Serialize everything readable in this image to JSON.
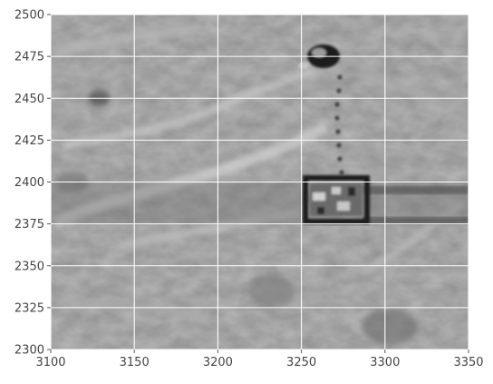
{
  "chart_data": {
    "type": "heatmap",
    "title": "",
    "xlabel": "",
    "ylabel": "",
    "xlim": [
      3100,
      3350
    ],
    "ylim": [
      2300,
      2500
    ],
    "x_ticks": [
      3100,
      3150,
      3200,
      3250,
      3300,
      3350
    ],
    "y_ticks": [
      2300,
      2325,
      2350,
      2375,
      2400,
      2425,
      2450,
      2475,
      2500
    ],
    "x_tick_labels": [
      "3100",
      "3150",
      "3200",
      "3250",
      "3300",
      "3350"
    ],
    "y_tick_labels": [
      "2300",
      "2325",
      "2350",
      "2375",
      "2400",
      "2425",
      "2450",
      "2475",
      "2500"
    ],
    "grid": true,
    "colormap": "gray",
    "content": "grayscale aerial/terrain imagery with a dark rectangular structure and a dark oval object connected by a dotted trail"
  },
  "colors": {
    "grid": "#ffffff",
    "tick_text": "#444444",
    "tick_mark": "#555555"
  }
}
